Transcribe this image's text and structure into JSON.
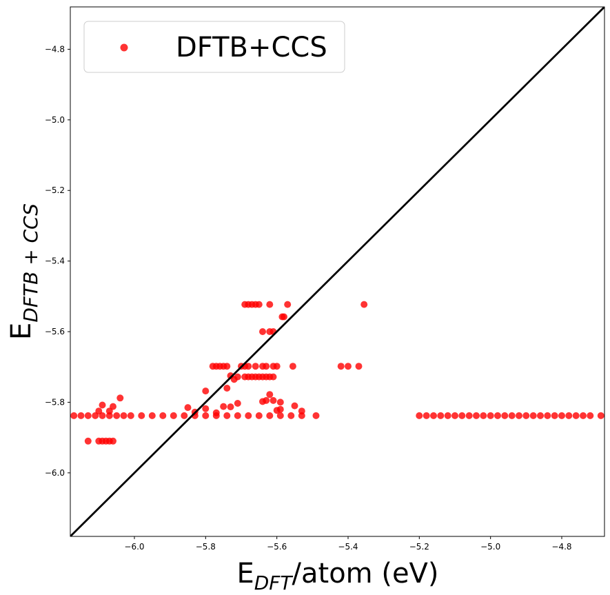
{
  "chart_data": {
    "type": "scatter",
    "title": "",
    "xlabel_main": "E",
    "xlabel_sub": "DFT",
    "xlabel_rest": "/atom (eV)",
    "ylabel_main": "E",
    "ylabel_sub": "DFTB + CCS",
    "xlim": [
      -6.18,
      -4.68
    ],
    "ylim": [
      -6.18,
      -4.68
    ],
    "xticks": [
      -6.0,
      -5.8,
      -5.6,
      -5.4,
      -5.2,
      -5.0,
      -4.8
    ],
    "xtick_labels": [
      "−6.0",
      "−5.8",
      "−5.6",
      "−5.4",
      "−5.2",
      "−5.0",
      "−4.8"
    ],
    "yticks": [
      -6.0,
      -5.8,
      -5.6,
      -5.4,
      -5.2,
      -5.0,
      -4.8
    ],
    "ytick_labels": [
      "−6.0",
      "−5.8",
      "−5.6",
      "−5.4",
      "−5.2",
      "−5.0",
      "−4.8"
    ],
    "grid": false,
    "legend_position": "top-left",
    "reference_line": {
      "from": [
        -6.18,
        -6.18
      ],
      "to": [
        -4.68,
        -4.68
      ],
      "color": "#000000"
    },
    "series": [
      {
        "name": "DFTB+CCS",
        "color": "#ff0000",
        "points": [
          [
            -6.17,
            -5.838
          ],
          [
            -6.15,
            -5.838
          ],
          [
            -6.13,
            -5.838
          ],
          [
            -6.11,
            -5.838
          ],
          [
            -6.09,
            -5.838
          ],
          [
            -6.07,
            -5.838
          ],
          [
            -6.05,
            -5.838
          ],
          [
            -6.03,
            -5.838
          ],
          [
            -6.01,
            -5.838
          ],
          [
            -5.98,
            -5.838
          ],
          [
            -5.95,
            -5.838
          ],
          [
            -5.92,
            -5.838
          ],
          [
            -5.89,
            -5.838
          ],
          [
            -5.86,
            -5.838
          ],
          [
            -5.83,
            -5.838
          ],
          [
            -5.8,
            -5.838
          ],
          [
            -5.77,
            -5.838
          ],
          [
            -5.74,
            -5.838
          ],
          [
            -5.71,
            -5.838
          ],
          [
            -5.68,
            -5.838
          ],
          [
            -5.65,
            -5.838
          ],
          [
            -5.62,
            -5.838
          ],
          [
            -5.59,
            -5.838
          ],
          [
            -5.56,
            -5.838
          ],
          [
            -5.53,
            -5.838
          ],
          [
            -5.49,
            -5.838
          ],
          [
            -6.1,
            -5.825
          ],
          [
            -6.09,
            -5.808
          ],
          [
            -6.07,
            -5.825
          ],
          [
            -6.06,
            -5.812
          ],
          [
            -6.04,
            -5.788
          ],
          [
            -6.13,
            -5.91
          ],
          [
            -6.1,
            -5.91
          ],
          [
            -6.09,
            -5.91
          ],
          [
            -6.08,
            -5.91
          ],
          [
            -6.07,
            -5.91
          ],
          [
            -6.06,
            -5.91
          ],
          [
            -5.85,
            -5.815
          ],
          [
            -5.83,
            -5.828
          ],
          [
            -5.8,
            -5.768
          ],
          [
            -5.8,
            -5.818
          ],
          [
            -5.77,
            -5.83
          ],
          [
            -5.75,
            -5.812
          ],
          [
            -5.74,
            -5.76
          ],
          [
            -5.73,
            -5.813
          ],
          [
            -5.71,
            -5.803
          ],
          [
            -5.78,
            -5.698
          ],
          [
            -5.77,
            -5.698
          ],
          [
            -5.76,
            -5.698
          ],
          [
            -5.75,
            -5.698
          ],
          [
            -5.74,
            -5.698
          ],
          [
            -5.73,
            -5.725
          ],
          [
            -5.71,
            -5.728
          ],
          [
            -5.72,
            -5.735
          ],
          [
            -5.7,
            -5.698
          ],
          [
            -5.69,
            -5.698
          ],
          [
            -5.69,
            -5.728
          ],
          [
            -5.68,
            -5.728
          ],
          [
            -5.67,
            -5.728
          ],
          [
            -5.66,
            -5.728
          ],
          [
            -5.65,
            -5.728
          ],
          [
            -5.64,
            -5.728
          ],
          [
            -5.63,
            -5.728
          ],
          [
            -5.62,
            -5.728
          ],
          [
            -5.61,
            -5.728
          ],
          [
            -5.68,
            -5.698
          ],
          [
            -5.66,
            -5.698
          ],
          [
            -5.64,
            -5.698
          ],
          [
            -5.63,
            -5.698
          ],
          [
            -5.61,
            -5.698
          ],
          [
            -5.6,
            -5.698
          ],
          [
            -5.555,
            -5.698
          ],
          [
            -5.69,
            -5.523
          ],
          [
            -5.68,
            -5.523
          ],
          [
            -5.67,
            -5.523
          ],
          [
            -5.66,
            -5.523
          ],
          [
            -5.65,
            -5.523
          ],
          [
            -5.62,
            -5.523
          ],
          [
            -5.57,
            -5.523
          ],
          [
            -5.355,
            -5.523
          ],
          [
            -5.585,
            -5.558
          ],
          [
            -5.58,
            -5.558
          ],
          [
            -5.64,
            -5.6
          ],
          [
            -5.62,
            -5.6
          ],
          [
            -5.61,
            -5.6
          ],
          [
            -5.62,
            -5.778
          ],
          [
            -5.64,
            -5.798
          ],
          [
            -5.63,
            -5.795
          ],
          [
            -5.61,
            -5.795
          ],
          [
            -5.59,
            -5.8
          ],
          [
            -5.6,
            -5.823
          ],
          [
            -5.59,
            -5.82
          ],
          [
            -5.55,
            -5.81
          ],
          [
            -5.53,
            -5.825
          ],
          [
            -5.42,
            -5.698
          ],
          [
            -5.4,
            -5.698
          ],
          [
            -5.37,
            -5.698
          ],
          [
            -5.2,
            -5.838
          ],
          [
            -5.18,
            -5.838
          ],
          [
            -5.16,
            -5.838
          ],
          [
            -5.14,
            -5.838
          ],
          [
            -5.12,
            -5.838
          ],
          [
            -5.1,
            -5.838
          ],
          [
            -5.08,
            -5.838
          ],
          [
            -5.06,
            -5.838
          ],
          [
            -5.04,
            -5.838
          ],
          [
            -5.02,
            -5.838
          ],
          [
            -5.0,
            -5.838
          ],
          [
            -4.98,
            -5.838
          ],
          [
            -4.96,
            -5.838
          ],
          [
            -4.94,
            -5.838
          ],
          [
            -4.92,
            -5.838
          ],
          [
            -4.9,
            -5.838
          ],
          [
            -4.88,
            -5.838
          ],
          [
            -4.86,
            -5.838
          ],
          [
            -4.84,
            -5.838
          ],
          [
            -4.82,
            -5.838
          ],
          [
            -4.8,
            -5.838
          ],
          [
            -4.78,
            -5.838
          ],
          [
            -4.76,
            -5.838
          ],
          [
            -4.74,
            -5.838
          ],
          [
            -4.72,
            -5.838
          ],
          [
            -4.69,
            -5.838
          ]
        ]
      }
    ]
  }
}
